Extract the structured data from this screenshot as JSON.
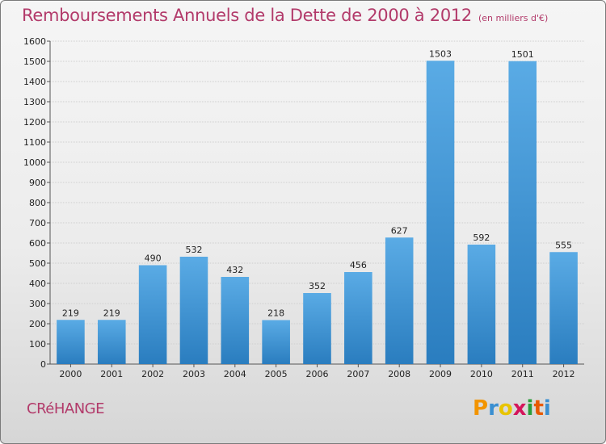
{
  "title": "Remboursements Annuels de la Dette de 2000 à 2012",
  "subtitle": "(en milliers d'€)",
  "commune": "CRéHANGE",
  "logo": {
    "letters": [
      "P",
      "r",
      "o",
      "x",
      "i",
      "t",
      "i"
    ],
    "colors": [
      "#f29400",
      "#3a8fd1",
      "#e8c400",
      "#d4145a",
      "#2a9d3a",
      "#e85a00",
      "#3a8fd1"
    ]
  },
  "colors": {
    "bar_top": "#5aabe5",
    "bar_bottom": "#2a7dbf",
    "grid": "#cfcfcf",
    "accent": "#b23a6a"
  },
  "chart_data": {
    "type": "bar",
    "categories": [
      "2000",
      "2001",
      "2002",
      "2003",
      "2004",
      "2005",
      "2006",
      "2007",
      "2008",
      "2009",
      "2010",
      "2011",
      "2012"
    ],
    "values": [
      219,
      219,
      490,
      532,
      432,
      218,
      352,
      456,
      627,
      1503,
      592,
      1501,
      555
    ],
    "ylim": [
      0,
      1600
    ],
    "yticks": [
      0,
      100,
      200,
      300,
      400,
      500,
      600,
      700,
      800,
      900,
      1000,
      1100,
      1200,
      1300,
      1400,
      1500,
      1600
    ],
    "grid": true
  }
}
